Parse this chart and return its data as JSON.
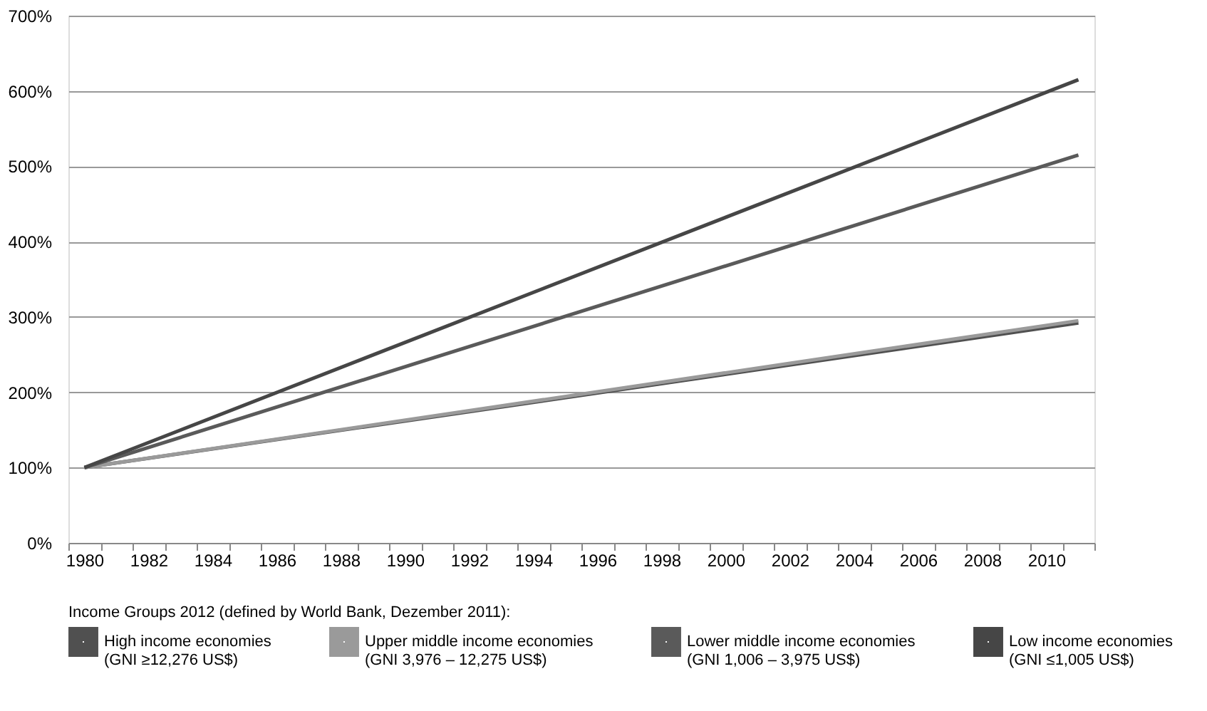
{
  "chart_data": {
    "type": "line",
    "categories": [
      "1980",
      null,
      "1982",
      null,
      "1984",
      null,
      "1986",
      null,
      "1988",
      null,
      "1990",
      null,
      "1992",
      null,
      "1994",
      null,
      "1996",
      null,
      "1998",
      null,
      "2000",
      null,
      "2002",
      null,
      "2004",
      null,
      "2006",
      null,
      "2008",
      null,
      "2010",
      null
    ],
    "series": [
      {
        "name": "High income economies\n(GNI ≥12,276 US$)",
        "color": "#505050",
        "values": [
          100,
          null,
          null,
          null,
          null,
          null,
          null,
          null,
          null,
          null,
          null,
          null,
          null,
          null,
          null,
          null,
          null,
          null,
          null,
          null,
          null,
          null,
          null,
          null,
          null,
          null,
          null,
          null,
          null,
          null,
          null,
          292
        ]
      },
      {
        "name": "Upper middle income economies\n(GNI 3,976 – 12,275 US$)",
        "color": "#9a9a9a",
        "values": [
          100,
          null,
          null,
          null,
          null,
          null,
          null,
          null,
          null,
          null,
          null,
          null,
          null,
          null,
          null,
          null,
          null,
          null,
          null,
          null,
          null,
          null,
          null,
          null,
          null,
          null,
          null,
          null,
          null,
          null,
          null,
          295
        ]
      },
      {
        "name": "Lower middle income economies\n(GNI 1,006 – 3,975 US$)",
        "color": "#5a5a5a",
        "values": [
          100,
          null,
          null,
          null,
          null,
          null,
          null,
          null,
          null,
          null,
          null,
          null,
          null,
          null,
          null,
          null,
          null,
          null,
          null,
          null,
          null,
          null,
          null,
          null,
          null,
          null,
          null,
          null,
          null,
          null,
          null,
          515
        ]
      },
      {
        "name": "Low  income economies\n(GNI  ≤1,005 US$)",
        "color": "#464646",
        "values": [
          100,
          null,
          null,
          null,
          null,
          null,
          null,
          null,
          null,
          null,
          null,
          null,
          null,
          null,
          null,
          null,
          null,
          null,
          null,
          null,
          null,
          null,
          null,
          null,
          null,
          null,
          null,
          null,
          null,
          null,
          null,
          615
        ]
      }
    ],
    "ylim": [
      0,
      700
    ],
    "yticks": [
      {
        "value": 0,
        "label": "0%"
      },
      {
        "value": 100,
        "label": "100%"
      },
      {
        "value": 200,
        "label": "200%"
      },
      {
        "value": 300,
        "label": "300%"
      },
      {
        "value": 400,
        "label": "400%"
      },
      {
        "value": 500,
        "label": "500%"
      },
      {
        "value": 600,
        "label": "600%"
      },
      {
        "value": 700,
        "label": "700%"
      }
    ],
    "grid": "y",
    "legend": "bottom",
    "legend_title": "Income Groups 2012 (defined by World Bank, Dezember 2011):",
    "marker": "none",
    "line_style": "solid"
  }
}
